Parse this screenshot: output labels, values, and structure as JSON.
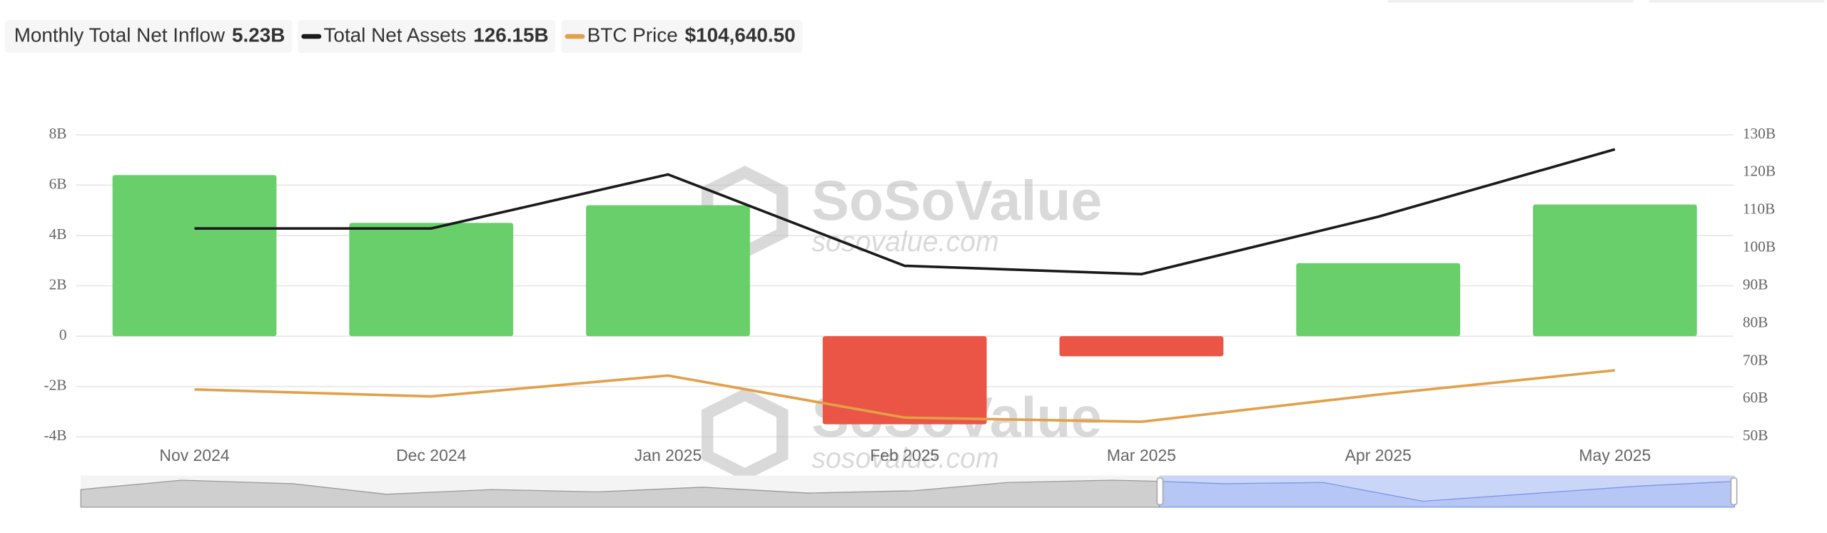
{
  "chart_data": {
    "type": "bar",
    "categories": [
      "Nov 2024",
      "Dec 2024",
      "Jan 2025",
      "Feb 2025",
      "Mar 2025",
      "Apr 2025",
      "May 2025"
    ],
    "series": [
      {
        "name": "Monthly Total Net Inflow",
        "summary": "5.23B",
        "type": "bar",
        "positive_color": "#68cf6a",
        "negative_color": "#eb5545",
        "values": [
          6.4,
          4.5,
          5.2,
          -3.5,
          -0.8,
          2.9,
          5.23
        ]
      },
      {
        "name": "Total Net Assets",
        "summary": "126.15B",
        "type": "line",
        "color": "#1a1a1a",
        "axis": "y2",
        "values": [
          105.2,
          105.2,
          119.5,
          95.3,
          93.1,
          108.3,
          126.15
        ]
      },
      {
        "name": "BTC Price",
        "summary": "$104,640.50",
        "type": "line",
        "color": "#e2a04a",
        "axis": "y3",
        "values": [
          96400,
          93400,
          102400,
          84300,
          82500,
          94200,
          104640.5
        ]
      }
    ],
    "ylim": [
      -4,
      8
    ],
    "yticks": [
      {
        "value": -4,
        "label": "-4B"
      },
      {
        "value": -2,
        "label": "-2B"
      },
      0,
      {
        "value": 2,
        "label": "2B"
      },
      {
        "value": 4,
        "label": "4B"
      },
      {
        "value": 6,
        "label": "6B"
      },
      {
        "value": 8,
        "label": "8B"
      }
    ],
    "y2lim": [
      50,
      130
    ],
    "y2ticks": [
      {
        "value": 50,
        "label": "50B"
      },
      {
        "value": 60,
        "label": "60B"
      },
      {
        "value": 70,
        "label": "70B"
      },
      {
        "value": 80,
        "label": "80B"
      },
      {
        "value": 90,
        "label": "90B"
      },
      {
        "value": 100,
        "label": "100B"
      },
      {
        "value": 110,
        "label": "110B"
      },
      {
        "value": 120,
        "label": "120B"
      },
      {
        "value": 130,
        "label": "130B"
      }
    ],
    "y3lim": [
      76000,
      206000
    ],
    "grid": true,
    "watermark": {
      "brand": "SoSoValue",
      "site": "sosovalue.com"
    }
  }
}
